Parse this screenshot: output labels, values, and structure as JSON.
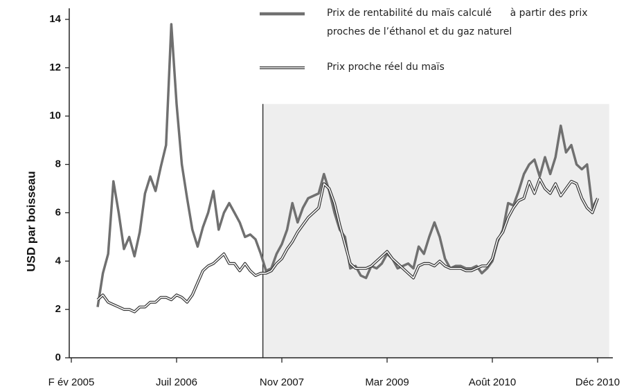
{
  "chart_data": {
    "type": "line",
    "y_label": "USD par boisseau",
    "xlim": [
      0,
      5.15
    ],
    "ylim": [
      0,
      14
    ],
    "xticks": [
      {
        "value": 0,
        "label": "F év 2005"
      },
      {
        "value": 1,
        "label": "Juil 2006"
      },
      {
        "value": 2,
        "label": "Nov 2007"
      },
      {
        "value": 3,
        "label": "Mar 2009"
      },
      {
        "value": 4,
        "label": "Août 2010"
      },
      {
        "value": 5,
        "label": "Déc 2010"
      }
    ],
    "yticks": [
      0,
      2,
      4,
      6,
      8,
      10,
      12,
      14
    ],
    "shade": {
      "x": [
        1.82,
        5.11
      ],
      "ymax": 10.5,
      "color": "#eeeeee"
    },
    "x": [
      0.25,
      0.3,
      0.35,
      0.4,
      0.45,
      0.5,
      0.55,
      0.6,
      0.65,
      0.7,
      0.75,
      0.8,
      0.85,
      0.9,
      0.95,
      1.0,
      1.05,
      1.1,
      1.15,
      1.2,
      1.25,
      1.3,
      1.35,
      1.4,
      1.45,
      1.5,
      1.55,
      1.6,
      1.65,
      1.7,
      1.75,
      1.8,
      1.85,
      1.9,
      1.95,
      2.0,
      2.05,
      2.1,
      2.15,
      2.2,
      2.25,
      2.3,
      2.35,
      2.4,
      2.45,
      2.5,
      2.55,
      2.6,
      2.65,
      2.7,
      2.75,
      2.8,
      2.85,
      2.9,
      2.95,
      3.0,
      3.05,
      3.1,
      3.15,
      3.2,
      3.25,
      3.3,
      3.35,
      3.4,
      3.45,
      3.5,
      3.55,
      3.6,
      3.65,
      3.7,
      3.75,
      3.8,
      3.85,
      3.9,
      3.95,
      4.0,
      4.05,
      4.1,
      4.15,
      4.2,
      4.25,
      4.3,
      4.35,
      4.4,
      4.45,
      4.5,
      4.55,
      4.6,
      4.65,
      4.7,
      4.75,
      4.8,
      4.85,
      4.9,
      4.95,
      5.0
    ],
    "series": [
      {
        "name": "Prix de rentabilité du maïs calculé      à partir des prix proches de l’éthanol et du gaz naturel",
        "color": "#707070",
        "style": "solid",
        "values": [
          2.1,
          3.5,
          4.3,
          7.3,
          6.0,
          4.5,
          5.0,
          4.2,
          5.2,
          6.8,
          7.5,
          6.9,
          7.9,
          8.8,
          13.8,
          10.5,
          8.0,
          6.6,
          5.3,
          4.6,
          5.4,
          6.0,
          6.9,
          5.3,
          6.0,
          6.4,
          6.0,
          5.6,
          5.0,
          5.1,
          4.9,
          4.3,
          3.6,
          3.7,
          4.3,
          4.7,
          5.3,
          6.4,
          5.6,
          6.2,
          6.6,
          6.7,
          6.8,
          7.6,
          6.9,
          6.0,
          5.3,
          5.0,
          3.7,
          3.8,
          3.4,
          3.3,
          3.8,
          3.7,
          3.9,
          4.3,
          4.1,
          3.7,
          3.8,
          3.9,
          3.7,
          4.6,
          4.3,
          5.0,
          5.6,
          5.0,
          4.1,
          3.7,
          3.8,
          3.8,
          3.7,
          3.7,
          3.8,
          3.5,
          3.7,
          4.0,
          4.8,
          5.3,
          6.4,
          6.3,
          6.9,
          7.6,
          8.0,
          8.2,
          7.5,
          8.3,
          7.6,
          8.3,
          9.6,
          8.5,
          8.8,
          8.0,
          7.8,
          8.0,
          6.2,
          6.6
        ]
      },
      {
        "name": "Prix proche réel du maïs",
        "color": "#333333",
        "style": "double",
        "values": [
          2.4,
          2.6,
          2.3,
          2.2,
          2.1,
          2.0,
          2.0,
          1.9,
          2.1,
          2.1,
          2.3,
          2.3,
          2.5,
          2.5,
          2.4,
          2.6,
          2.5,
          2.3,
          2.6,
          3.1,
          3.6,
          3.8,
          3.9,
          4.1,
          4.3,
          3.9,
          3.9,
          3.6,
          3.9,
          3.6,
          3.4,
          3.5,
          3.5,
          3.6,
          3.9,
          4.1,
          4.5,
          4.8,
          5.2,
          5.5,
          5.8,
          6.0,
          6.2,
          7.2,
          7.0,
          6.4,
          5.5,
          4.7,
          3.9,
          3.7,
          3.7,
          3.7,
          3.8,
          4.0,
          4.2,
          4.4,
          4.1,
          3.9,
          3.7,
          3.5,
          3.3,
          3.8,
          3.9,
          3.9,
          3.8,
          4.0,
          3.8,
          3.7,
          3.7,
          3.7,
          3.6,
          3.6,
          3.7,
          3.8,
          3.8,
          4.1,
          4.9,
          5.2,
          5.8,
          6.2,
          6.5,
          6.6,
          7.3,
          6.8,
          7.4,
          7.0,
          6.8,
          7.2,
          6.7,
          7.0,
          7.3,
          7.2,
          6.6,
          6.2,
          6.0,
          6.6
        ]
      }
    ]
  }
}
